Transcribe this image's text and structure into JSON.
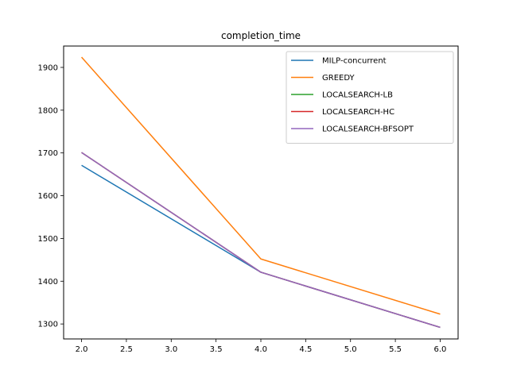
{
  "chart_data": {
    "type": "line",
    "title": "completion_time",
    "xlabel": "",
    "ylabel": "",
    "xlim": [
      1.8,
      6.2
    ],
    "ylim": [
      1265,
      1950
    ],
    "xticks": [
      2.0,
      2.5,
      3.0,
      3.5,
      4.0,
      4.5,
      5.0,
      5.5,
      6.0
    ],
    "xtick_labels": [
      "2.0",
      "2.5",
      "3.0",
      "3.5",
      "4.0",
      "4.5",
      "5.0",
      "5.5",
      "6.0"
    ],
    "yticks": [
      1300,
      1400,
      1500,
      1600,
      1700,
      1800,
      1900
    ],
    "ytick_labels": [
      "1300",
      "1400",
      "1500",
      "1600",
      "1700",
      "1800",
      "1900"
    ],
    "grid": false,
    "legend_position": "top-right",
    "x": [
      2,
      4,
      6
    ],
    "series": [
      {
        "name": "MILP-concurrent",
        "color": "#1f77b4",
        "values": [
          1671,
          1421,
          1292
        ]
      },
      {
        "name": "GREEDY",
        "color": "#ff7f0e",
        "values": [
          1924,
          1452,
          1323
        ]
      },
      {
        "name": "LOCALSEARCH-LB",
        "color": "#2ca02c",
        "values": [
          1701,
          1421,
          1292
        ]
      },
      {
        "name": "LOCALSEARCH-HC",
        "color": "#d62728",
        "values": [
          1701,
          1421,
          1292
        ]
      },
      {
        "name": "LOCALSEARCH-BFSOPT",
        "color": "#9467bd",
        "values": [
          1701,
          1421,
          1292
        ]
      }
    ]
  }
}
